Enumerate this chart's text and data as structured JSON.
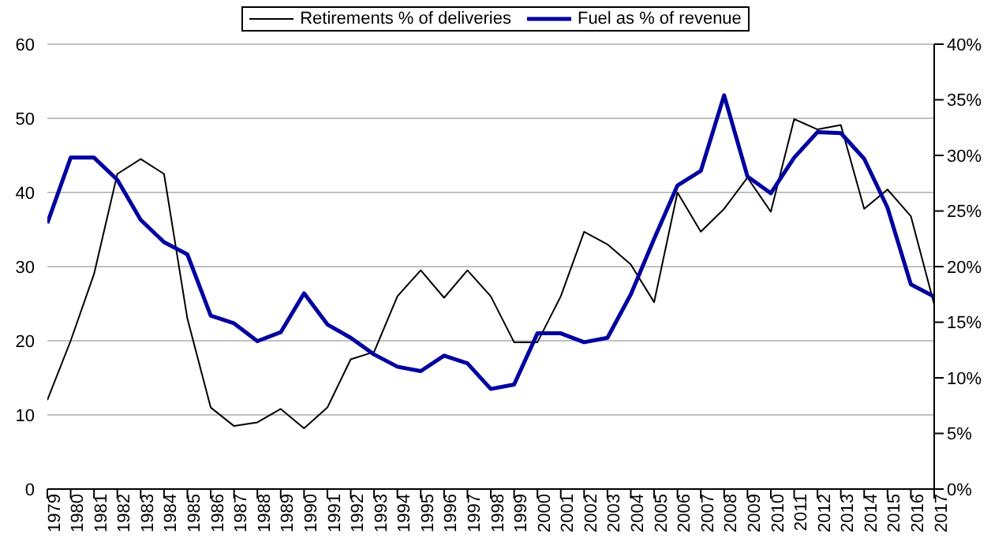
{
  "chart_data": {
    "type": "line",
    "categories": [
      "1979",
      "1980",
      "1981",
      "1982",
      "1983",
      "1984",
      "1985",
      "1986",
      "1987",
      "1988",
      "1989",
      "1990",
      "1991",
      "1992",
      "1993",
      "1994",
      "1995",
      "1996",
      "1997",
      "1998",
      "1999",
      "2000",
      "2001",
      "2002",
      "2003",
      "2004",
      "2005",
      "2006",
      "2007",
      "2008",
      "2009",
      "2010",
      "2011",
      "2012",
      "2013",
      "2014",
      "2015",
      "2016",
      "2017"
    ],
    "series": [
      {
        "name": "Retirements % of deliveries",
        "color": "#000000",
        "values": [
          12,
          20,
          29,
          42.5,
          44.5,
          42.5,
          23,
          11,
          8.5,
          9,
          10.8,
          8.2,
          11,
          17.5,
          18.5,
          26,
          29.5,
          25.8,
          29.5,
          26,
          19.8,
          19.8,
          26,
          34.7,
          33,
          30.3,
          25.2,
          40,
          34.7,
          37.8,
          42,
          37.4,
          49.9,
          48.5,
          49.1,
          37.8,
          40.4,
          36.8,
          24.9
        ]
      },
      {
        "name": "Fuel as % of revenue",
        "color": "#0000a0",
        "axis": "y2",
        "values": [
          23.9,
          29.8,
          29.8,
          27.8,
          24.2,
          22.2,
          21.1,
          15.6,
          14.9,
          13.3,
          14.1,
          17.6,
          14.8,
          13.6,
          12.1,
          11,
          10.6,
          12,
          11.3,
          9,
          9.4,
          14,
          14,
          13.2,
          13.6,
          17.5,
          22.5,
          27.3,
          28.6,
          35.4,
          28.1,
          26.6,
          29.8,
          32.1,
          32,
          29.7,
          25.3,
          18.4,
          17.3
        ]
      }
    ],
    "ylim": [
      0,
      60
    ],
    "yticks": [
      0,
      10,
      20,
      30,
      40,
      50,
      60
    ],
    "y2lim": [
      0,
      40
    ],
    "y2ticks": [
      {
        "value": 0,
        "label": "0%"
      },
      {
        "value": 5,
        "label": "5%"
      },
      {
        "value": 10,
        "label": "10%"
      },
      {
        "value": 15,
        "label": "15%"
      },
      {
        "value": 20,
        "label": "20%"
      },
      {
        "value": 25,
        "label": "25%"
      },
      {
        "value": 30,
        "label": "30%"
      },
      {
        "value": 35,
        "label": "35%"
      },
      {
        "value": 40,
        "label": "40%"
      }
    ],
    "grid": "y",
    "legend": "top",
    "marker": "none",
    "line_style": "solid"
  }
}
